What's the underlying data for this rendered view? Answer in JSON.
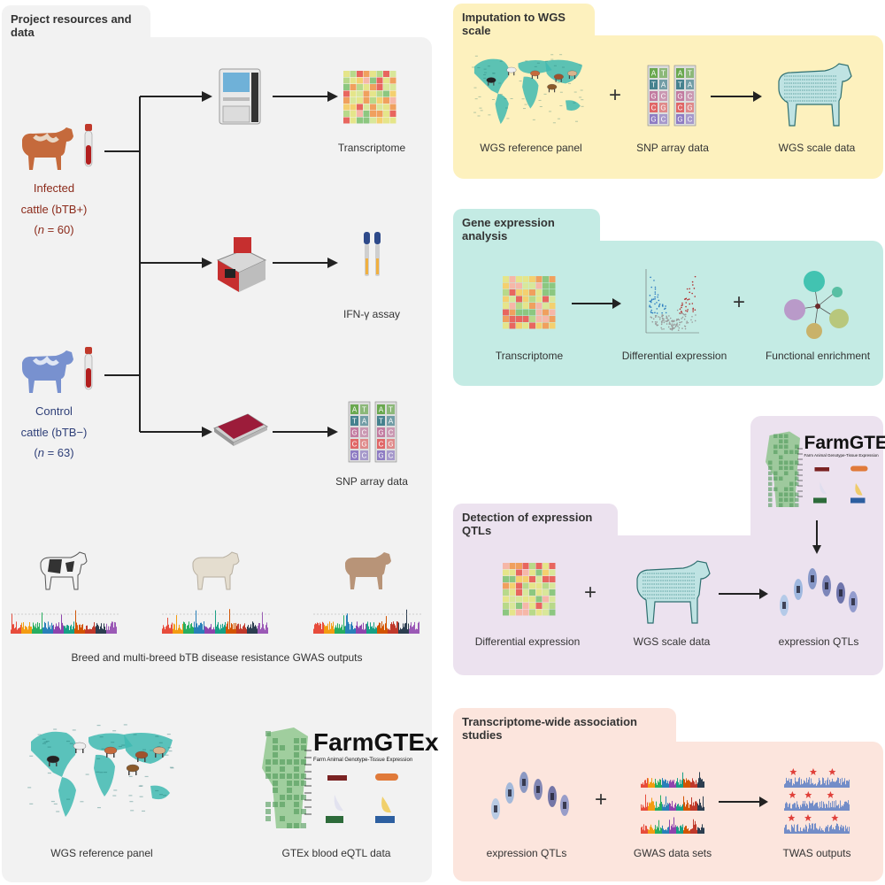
{
  "left_panel": {
    "title": "Project resources and data",
    "infected": {
      "line1": "Infected",
      "line2": "cattle (bTB+)",
      "n_prefix": "n",
      "n_suffix": " = 60"
    },
    "control": {
      "line1": "Control",
      "line2": "cattle (bTB−)",
      "n_prefix": "n",
      "n_suffix": " = 63"
    },
    "outputs": {
      "transcriptome": "Transcriptome",
      "ifn": "IFN-γ assay",
      "snp": "SNP array data"
    },
    "gwas_caption": "Breed and multi-breed bTB disease resistance GWAS outputs",
    "wgs_caption": "WGS reference panel",
    "gtex_caption": "GTEx blood eQTL data"
  },
  "farmgtex": {
    "name": "FarmGTEx",
    "subtitle": "Farm Animal Genotype-Tissue Expression"
  },
  "imputation": {
    "title": "Imputation to WGS scale",
    "wgs_ref": "WGS reference panel",
    "snp": "SNP array data",
    "wgs_scale": "WGS scale data"
  },
  "gene_expression": {
    "title": "Gene expression analysis",
    "transcriptome": "Transcriptome",
    "diff": "Differential expression",
    "func": "Functional enrichment"
  },
  "eqtl": {
    "title": "Detection of expression QTLs",
    "diff": "Differential expression",
    "wgs": "WGS scale data",
    "eqtls": "expression QTLs"
  },
  "twas": {
    "title": "Transcriptome-wide association studies",
    "eqtls": "expression QTLs",
    "gwas": "GWAS data sets",
    "outputs": "TWAS outputs"
  },
  "colors": {
    "left_bg": "#f2f2f2",
    "yellow": "#fdf1be",
    "teal": "#c4ebe4",
    "lilac": "#ece2ef",
    "salmon": "#fce5dd",
    "infected": "#8b2a1a",
    "control": "#2e3f78"
  }
}
